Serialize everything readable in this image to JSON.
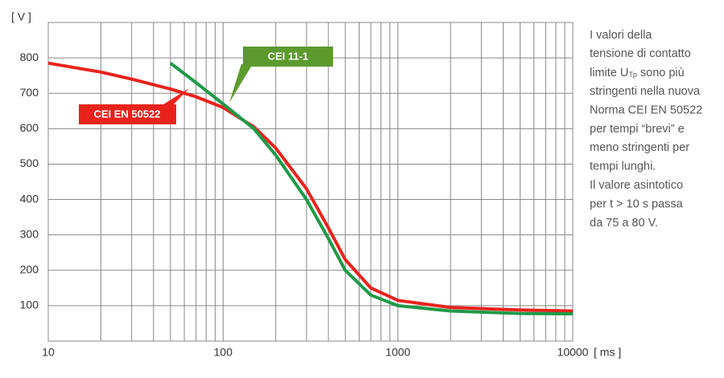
{
  "chart_data": {
    "type": "line",
    "y_label": "[ V ]",
    "x_label": "[ ms ]",
    "xlim": [
      10,
      10000
    ],
    "ylim": [
      0,
      900
    ],
    "log_x": true,
    "grid": true,
    "xticks": [
      10,
      100,
      1000,
      10000
    ],
    "xminorticks": [
      20,
      30,
      40,
      50,
      60,
      70,
      80,
      90,
      200,
      300,
      400,
      500,
      600,
      700,
      800,
      900,
      2000,
      3000,
      4000,
      5000,
      6000,
      7000,
      8000,
      9000
    ],
    "yticks": [
      100,
      200,
      300,
      400,
      500,
      600,
      700,
      800
    ],
    "series": [
      {
        "name": "CEI EN 50522",
        "color": "#e8231c",
        "x": [
          10,
          20,
          30,
          50,
          70,
          100,
          150,
          200,
          300,
          400,
          500,
          700,
          1000,
          2000,
          5000,
          10000
        ],
        "values": [
          785,
          760,
          740,
          712,
          690,
          660,
          605,
          545,
          430,
          320,
          230,
          150,
          115,
          95,
          88,
          85
        ]
      },
      {
        "name": "CEI 11-1",
        "color": "#1e9a48",
        "x": [
          50,
          70,
          100,
          150,
          200,
          300,
          400,
          500,
          700,
          1000,
          2000,
          5000,
          10000
        ],
        "values": [
          785,
          730,
          670,
          600,
          525,
          400,
          290,
          200,
          130,
          100,
          85,
          78,
          77
        ]
      }
    ],
    "note": {
      "lines": [
        "I valori della",
        "tensione di contatto",
        [
          "limite U",
          "Tp",
          " sono più"
        ],
        "stringenti nella nuova",
        "Norma CEI EN 50522",
        "per tempi “brevi” e",
        "meno stringenti per",
        "tempi lunghi.",
        "Il valore asintotico",
        "per t > 10 s passa",
        "da 75 a 80 V."
      ]
    }
  }
}
